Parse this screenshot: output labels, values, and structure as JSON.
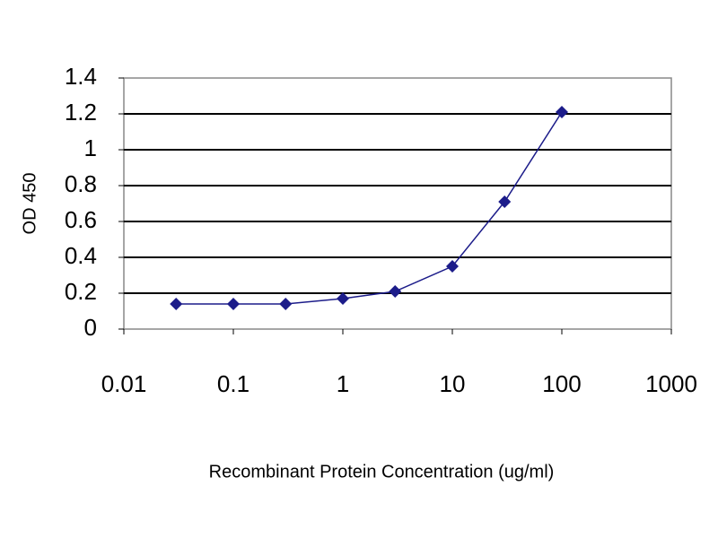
{
  "chart_data": {
    "type": "line",
    "x_label": "Recombinant Protein Concentration (ug/ml)",
    "y_label": "OD 450",
    "x": [
      0.03,
      0.1,
      0.3,
      1,
      3,
      10,
      30,
      100
    ],
    "values": [
      0.14,
      0.14,
      0.14,
      0.17,
      0.21,
      0.35,
      0.71,
      1.21
    ],
    "color": "#1c1c8a",
    "xscale": "log",
    "xlim": [
      0.01,
      1000
    ],
    "xticks": [
      0.01,
      0.1,
      1,
      10,
      100,
      1000
    ],
    "ylim": [
      0,
      1.4
    ],
    "yticks": [
      0,
      0.2,
      0.4,
      0.6,
      0.8,
      1,
      1.2,
      1.4
    ],
    "grid": true
  }
}
